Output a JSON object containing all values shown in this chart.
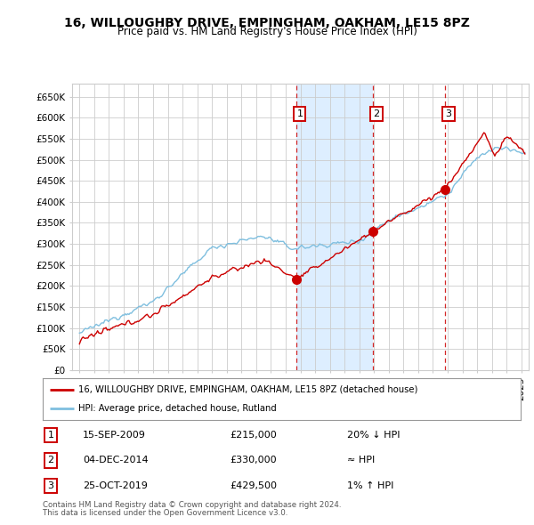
{
  "title1": "16, WILLOUGHBY DRIVE, EMPINGHAM, OAKHAM, LE15 8PZ",
  "title2": "Price paid vs. HM Land Registry's House Price Index (HPI)",
  "hpi_color": "#7fbfdf",
  "price_color": "#cc0000",
  "vline_color": "#cc0000",
  "shade_color": "#ddeeff",
  "background_color": "#ffffff",
  "grid_color": "#cccccc",
  "yticks": [
    0,
    50000,
    100000,
    150000,
    200000,
    250000,
    300000,
    350000,
    400000,
    450000,
    500000,
    550000,
    600000,
    650000
  ],
  "ytick_labels": [
    "£0",
    "£50K",
    "£100K",
    "£150K",
    "£200K",
    "£250K",
    "£300K",
    "£350K",
    "£400K",
    "£450K",
    "£500K",
    "£550K",
    "£600K",
    "£650K"
  ],
  "xlim_start": 1994.5,
  "xlim_end": 2025.5,
  "ylim_bottom": 0,
  "ylim_top": 680000,
  "sales": [
    {
      "year": 2009.71,
      "price": 215000,
      "label": "1"
    },
    {
      "year": 2014.92,
      "price": 330000,
      "label": "2"
    },
    {
      "year": 2019.81,
      "price": 429500,
      "label": "3"
    }
  ],
  "sale_details": [
    {
      "label": "1",
      "date": "15-SEP-2009",
      "price": "£215,000",
      "hpi_note": "20% ↓ HPI"
    },
    {
      "label": "2",
      "date": "04-DEC-2014",
      "price": "£330,000",
      "hpi_note": "≈ HPI"
    },
    {
      "label": "3",
      "date": "25-OCT-2019",
      "price": "£429,500",
      "hpi_note": "1% ↑ HPI"
    }
  ],
  "legend_line1": "16, WILLOUGHBY DRIVE, EMPINGHAM, OAKHAM, LE15 8PZ (detached house)",
  "legend_line2": "HPI: Average price, detached house, Rutland",
  "footnote1": "Contains HM Land Registry data © Crown copyright and database right 2024.",
  "footnote2": "This data is licensed under the Open Government Licence v3.0."
}
